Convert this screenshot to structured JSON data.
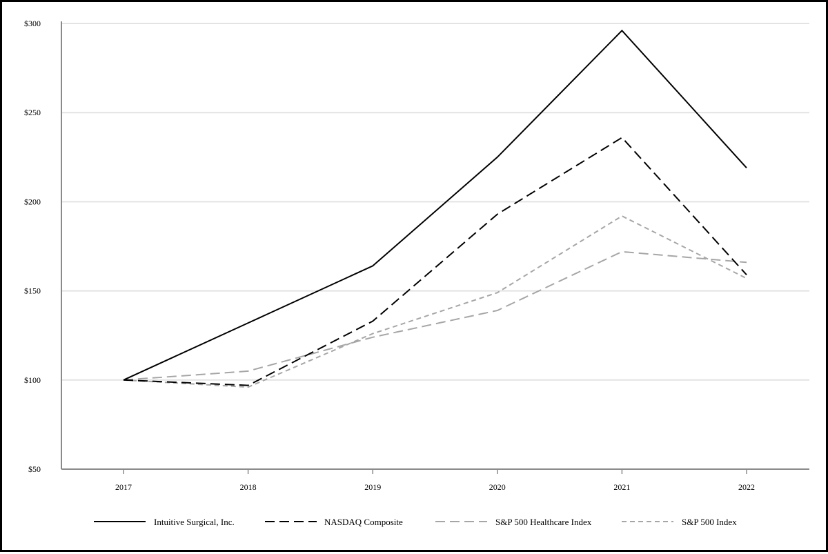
{
  "chart_data": {
    "type": "line",
    "title": "",
    "xlabel": "",
    "ylabel": "",
    "x": [
      "2017",
      "2018",
      "2019",
      "2020",
      "2021",
      "2022"
    ],
    "ylim": [
      50,
      300
    ],
    "yticks": [
      50,
      100,
      150,
      200,
      250,
      300
    ],
    "ytick_labels": [
      "$50",
      "$100",
      "$150",
      "$200",
      "$250",
      "$300"
    ],
    "grid": "horizontal",
    "legend_position": "bottom",
    "series": [
      {
        "name": "Intuitive Surgical, Inc.",
        "values": [
          100,
          132,
          164,
          225,
          296,
          219
        ],
        "color": "#000000",
        "dash": "solid"
      },
      {
        "name": "NASDAQ Composite",
        "values": [
          100,
          97,
          133,
          193,
          236,
          159
        ],
        "color": "#000000",
        "dash": "long"
      },
      {
        "name": "S&P 500 Healthcare Index",
        "values": [
          100,
          105,
          124,
          139,
          172,
          166
        ],
        "color": "#a6a6a6",
        "dash": "long"
      },
      {
        "name": "S&P 500 Index",
        "values": [
          100,
          96,
          126,
          149,
          192,
          157
        ],
        "color": "#a6a6a6",
        "dash": "short"
      }
    ]
  }
}
